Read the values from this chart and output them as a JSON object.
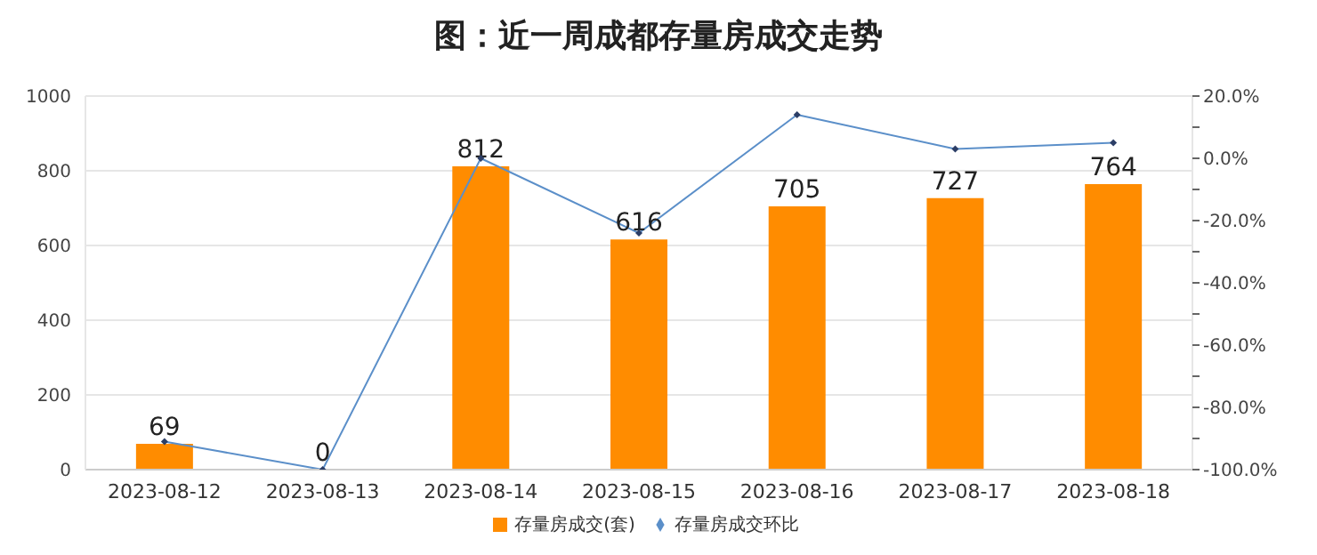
{
  "chart_data": {
    "type": "bar",
    "title": "图：近一周成都存量房成交走势",
    "categories": [
      "2023-08-12",
      "2023-08-13",
      "2023-08-14",
      "2023-08-15",
      "2023-08-16",
      "2023-08-17",
      "2023-08-18"
    ],
    "series": [
      {
        "name": "存量房成交(套)",
        "color": "#ff8c00",
        "values": [
          69,
          0,
          812,
          616,
          705,
          727,
          764
        ],
        "value_labels": [
          "69",
          "0",
          "812",
          "616",
          "705",
          "727",
          "764"
        ]
      },
      {
        "name": "存量房成交环比",
        "type": "line",
        "axis": "y2",
        "color": "#5b8fc9",
        "values": [
          -91,
          -100,
          0,
          -24,
          14,
          3,
          5
        ]
      }
    ],
    "ylim": [
      0,
      1000
    ],
    "yticks": [
      0,
      200,
      400,
      600,
      800,
      1000
    ],
    "y2lim": [
      -100,
      20
    ],
    "y2ticks": [
      {
        "value": -100,
        "label": "-100.0%"
      },
      {
        "value": -90,
        "label": null
      },
      {
        "value": -80,
        "label": "-80.0%"
      },
      {
        "value": -70,
        "label": null
      },
      {
        "value": -60,
        "label": "-60.0%"
      },
      {
        "value": -50,
        "label": null
      },
      {
        "value": -40,
        "label": "-40.0%"
      },
      {
        "value": -30,
        "label": null
      },
      {
        "value": -20,
        "label": "-20.0%"
      },
      {
        "value": -10,
        "label": null
      },
      {
        "value": 0,
        "label": "0.0%"
      },
      {
        "value": 10,
        "label": null
      },
      {
        "value": 20,
        "label": "20.0%"
      }
    ],
    "grid": "y",
    "legend": "bottom",
    "marker": "diamond",
    "line_style": "solid"
  }
}
